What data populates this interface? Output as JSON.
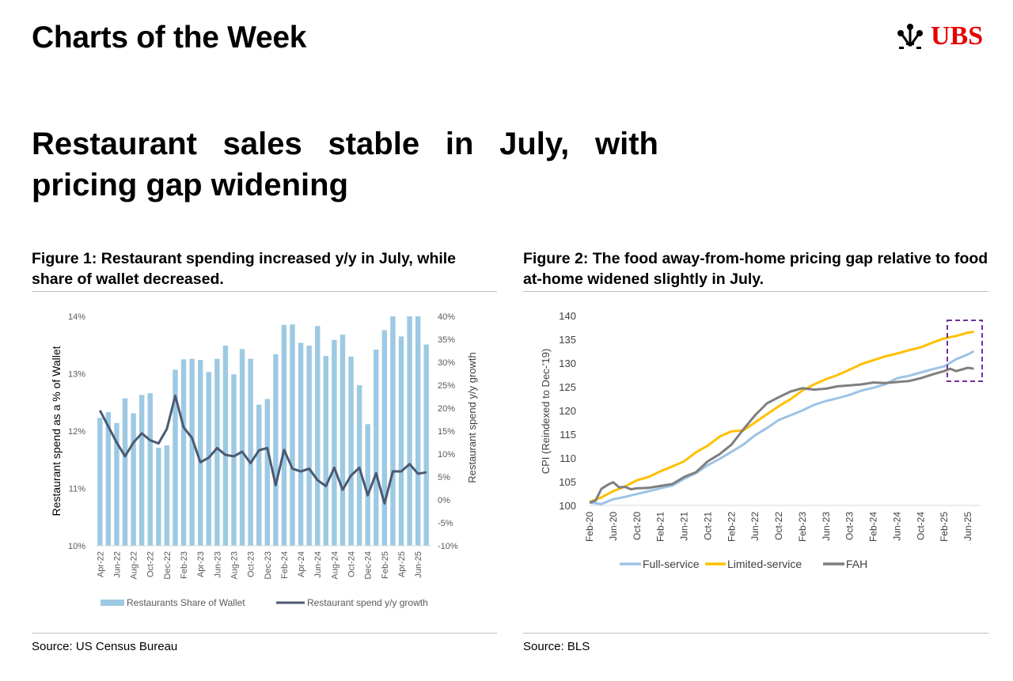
{
  "header": {
    "title": "Charts of the Week",
    "logo_text": "UBS",
    "logo_icon": "three-keys-icon",
    "brand_color": "#e60000"
  },
  "headline": "Restaurant sales stable in July, with pricing gap widening",
  "figure1": {
    "title": "Figure 1: Restaurant spending increased y/y in July, while share of wallet decreased.",
    "source": "Source: US Census Bureau"
  },
  "figure2": {
    "title": "Figure 2: The food away-from-home pricing gap relative to food at-home widened slightly in July.",
    "source": "Source: BLS"
  },
  "chart_data": [
    {
      "type": "bar+line",
      "ylabel": "Restaurant spend as a % of Wallet",
      "y2label": "Restaurant spend y/y growth",
      "ylim": [
        10,
        14
      ],
      "yticks": [
        "10%",
        "11%",
        "12%",
        "13%",
        "14%"
      ],
      "y2lim": [
        -10,
        40
      ],
      "y2ticks": [
        "-10%",
        "-5%",
        "0%",
        "5%",
        "10%",
        "15%",
        "20%",
        "25%",
        "30%",
        "35%",
        "40%"
      ],
      "categories": [
        "Apr-22",
        "May-22",
        "Jun-22",
        "Jul-22",
        "Aug-22",
        "Sep-22",
        "Oct-22",
        "Nov-22",
        "Dec-22",
        "Jan-23",
        "Feb-23",
        "Mar-23",
        "Apr-23",
        "May-23",
        "Jun-23",
        "Jul-23",
        "Aug-23",
        "Sep-23",
        "Oct-23",
        "Nov-23",
        "Dec-23",
        "Jan-24",
        "Feb-24",
        "Mar-24",
        "Apr-24",
        "May-24",
        "Jun-24",
        "Jul-24",
        "Aug-24",
        "Sep-24",
        "Oct-24",
        "Nov-24",
        "Dec-24",
        "Jan-25",
        "Feb-25",
        "Mar-25",
        "Apr-25",
        "May-25",
        "Jun-25",
        "Jul-25"
      ],
      "xtick_every": 2,
      "series": [
        {
          "name": "Restaurants Share of Wallet",
          "type": "bar",
          "axis": "left",
          "color": "#9dc9e3",
          "values": [
            12.23,
            12.33,
            12.14,
            12.57,
            12.31,
            12.63,
            12.66,
            11.71,
            11.75,
            13.07,
            13.25,
            13.26,
            13.24,
            13.03,
            13.26,
            13.49,
            12.99,
            13.43,
            13.26,
            12.46,
            12.56,
            13.34,
            13.85,
            13.86,
            13.54,
            13.49,
            13.83,
            13.31,
            13.59,
            13.68,
            13.3,
            12.8,
            12.12,
            13.42,
            13.76,
            14.0,
            13.65,
            14.0,
            14.0,
            13.51
          ]
        },
        {
          "name": "Restaurant spend y/y growth",
          "type": "line",
          "axis": "right",
          "color": "#4a5a70",
          "values": [
            19.5,
            16,
            12.5,
            9.5,
            12.5,
            14.5,
            13,
            12.3,
            15.5,
            22.7,
            15.8,
            13.5,
            8.2,
            9.2,
            11.3,
            9.8,
            9.5,
            10.5,
            8,
            10.8,
            11.3,
            3.2,
            10.9,
            6.8,
            6.2,
            6.8,
            4.3,
            3,
            7,
            2.2,
            5.3,
            7,
            1,
            5.8,
            -0.8,
            6.2,
            6.2,
            7.8,
            5.7,
            6.0
          ]
        }
      ],
      "legend": "bottom"
    },
    {
      "type": "line",
      "ylabel": "CPI (Reindexed to Dec-'19)",
      "ylim": [
        100,
        140
      ],
      "yticks": [
        "100",
        "105",
        "110",
        "115",
        "120",
        "125",
        "130",
        "135",
        "140"
      ],
      "x_start": "Feb-20",
      "x_unit": "months since Feb-20",
      "xticks": [
        "Feb-20",
        "Jun-20",
        "Oct-20",
        "Feb-21",
        "Jun-21",
        "Oct-21",
        "Feb-22",
        "Jun-22",
        "Oct-22",
        "Feb-23",
        "Jun-23",
        "Oct-23",
        "Feb-24",
        "Jun-24",
        "Oct-24",
        "Feb-25",
        "Jun-25"
      ],
      "xlim": [
        0,
        65
      ],
      "series": [
        {
          "name": "Full-service",
          "color": "#9dc3e6",
          "points": [
            [
              0,
              100.6
            ],
            [
              2,
              100.3
            ],
            [
              4,
              101.3
            ],
            [
              6,
              101.8
            ],
            [
              8,
              102.4
            ],
            [
              10,
              103.0
            ],
            [
              12,
              103.6
            ],
            [
              14,
              104.2
            ],
            [
              16,
              105.6
            ],
            [
              18,
              106.8
            ],
            [
              20,
              108.5
            ],
            [
              22,
              109.8
            ],
            [
              24,
              111.3
            ],
            [
              26,
              112.8
            ],
            [
              28,
              114.8
            ],
            [
              30,
              116.3
            ],
            [
              32,
              118.0
            ],
            [
              34,
              119.0
            ],
            [
              36,
              120.0
            ],
            [
              38,
              121.2
            ],
            [
              40,
              122.0
            ],
            [
              42,
              122.6
            ],
            [
              44,
              123.3
            ],
            [
              46,
              124.2
            ],
            [
              48,
              124.8
            ],
            [
              50,
              125.5
            ],
            [
              52,
              126.8
            ],
            [
              54,
              127.3
            ],
            [
              56,
              128.0
            ],
            [
              58,
              128.7
            ],
            [
              60,
              129.3
            ],
            [
              62,
              130.8
            ],
            [
              64,
              131.8
            ],
            [
              65,
              132.5
            ]
          ]
        },
        {
          "name": "Limited-service",
          "color": "#ffc000",
          "points": [
            [
              0,
              100.7
            ],
            [
              2,
              101.7
            ],
            [
              4,
              103.0
            ],
            [
              6,
              104.0
            ],
            [
              8,
              105.3
            ],
            [
              10,
              106.0
            ],
            [
              12,
              107.2
            ],
            [
              14,
              108.2
            ],
            [
              16,
              109.3
            ],
            [
              18,
              111.2
            ],
            [
              20,
              112.6
            ],
            [
              22,
              114.5
            ],
            [
              24,
              115.6
            ],
            [
              26,
              115.8
            ],
            [
              28,
              117.5
            ],
            [
              30,
              119.2
            ],
            [
              32,
              120.9
            ],
            [
              34,
              122.4
            ],
            [
              36,
              124.2
            ],
            [
              38,
              125.5
            ],
            [
              40,
              126.6
            ],
            [
              42,
              127.5
            ],
            [
              44,
              128.6
            ],
            [
              46,
              129.8
            ],
            [
              48,
              130.6
            ],
            [
              50,
              131.4
            ],
            [
              52,
              132.0
            ],
            [
              54,
              132.7
            ],
            [
              56,
              133.3
            ],
            [
              58,
              134.3
            ],
            [
              60,
              135.2
            ],
            [
              62,
              135.7
            ],
            [
              64,
              136.4
            ],
            [
              65,
              136.6
            ]
          ]
        },
        {
          "name": "FAH",
          "color": "#7f7f7f",
          "points": [
            [
              0,
              100.6
            ],
            [
              1,
              101.0
            ],
            [
              2,
              103.5
            ],
            [
              3,
              104.3
            ],
            [
              4,
              104.9
            ],
            [
              5,
              103.8
            ],
            [
              6,
              103.9
            ],
            [
              7,
              103.4
            ],
            [
              8,
              103.6
            ],
            [
              10,
              103.7
            ],
            [
              12,
              104.1
            ],
            [
              14,
              104.5
            ],
            [
              16,
              106.0
            ],
            [
              18,
              107.0
            ],
            [
              20,
              109.3
            ],
            [
              22,
              110.8
            ],
            [
              24,
              112.8
            ],
            [
              26,
              116.0
            ],
            [
              28,
              119.0
            ],
            [
              30,
              121.5
            ],
            [
              32,
              122.8
            ],
            [
              34,
              124.0
            ],
            [
              36,
              124.7
            ],
            [
              38,
              124.4
            ],
            [
              40,
              124.6
            ],
            [
              42,
              125.1
            ],
            [
              44,
              125.3
            ],
            [
              46,
              125.5
            ],
            [
              48,
              125.9
            ],
            [
              50,
              125.8
            ],
            [
              52,
              126.0
            ],
            [
              54,
              126.2
            ],
            [
              56,
              126.8
            ],
            [
              58,
              127.6
            ],
            [
              60,
              128.3
            ],
            [
              61,
              128.8
            ],
            [
              62,
              128.3
            ],
            [
              64,
              129.0
            ],
            [
              65,
              128.8
            ]
          ]
        }
      ],
      "annotation": "dashed purple box highlighting Feb-25 to Jul-25",
      "annotation_color": "#7030a0",
      "legend": "bottom"
    }
  ]
}
